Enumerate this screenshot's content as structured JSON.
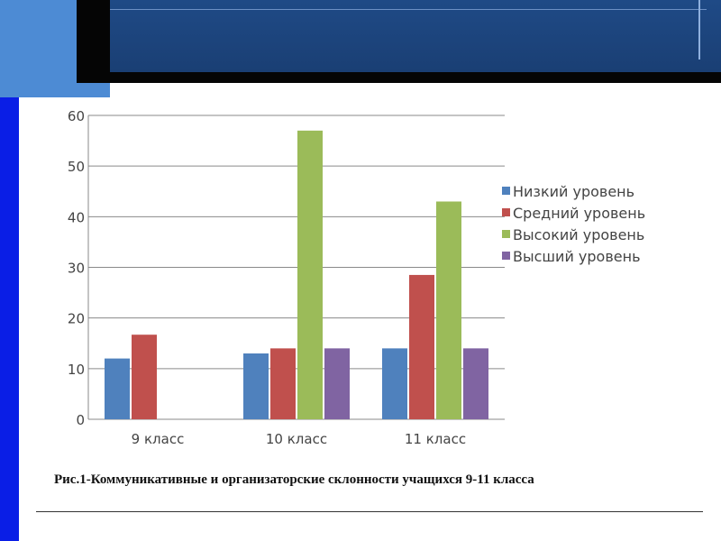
{
  "chart_data": {
    "type": "bar",
    "categories": [
      "9 класс",
      "10 класс",
      "11 класс"
    ],
    "series": [
      {
        "name": "Низкий уровень",
        "values": [
          12,
          13,
          14
        ],
        "color": "#4f81bd"
      },
      {
        "name": "Средний уровень",
        "values": [
          16.7,
          14,
          28.5
        ],
        "color": "#c0504d"
      },
      {
        "name": "Высокий уровень",
        "values": [
          0,
          57,
          43
        ],
        "color": "#9bbb59"
      },
      {
        "name": "Высший уровень",
        "values": [
          0,
          14,
          14
        ],
        "color": "#8064a2"
      }
    ],
    "yticks": [
      "0",
      "10",
      "20",
      "30",
      "40",
      "50",
      "60"
    ],
    "ylim": [
      0,
      60
    ],
    "grid": true,
    "legend": "right"
  },
  "caption": "Рис.1-Коммуникативные и организаторские склонности учащихся 9-11 класса"
}
